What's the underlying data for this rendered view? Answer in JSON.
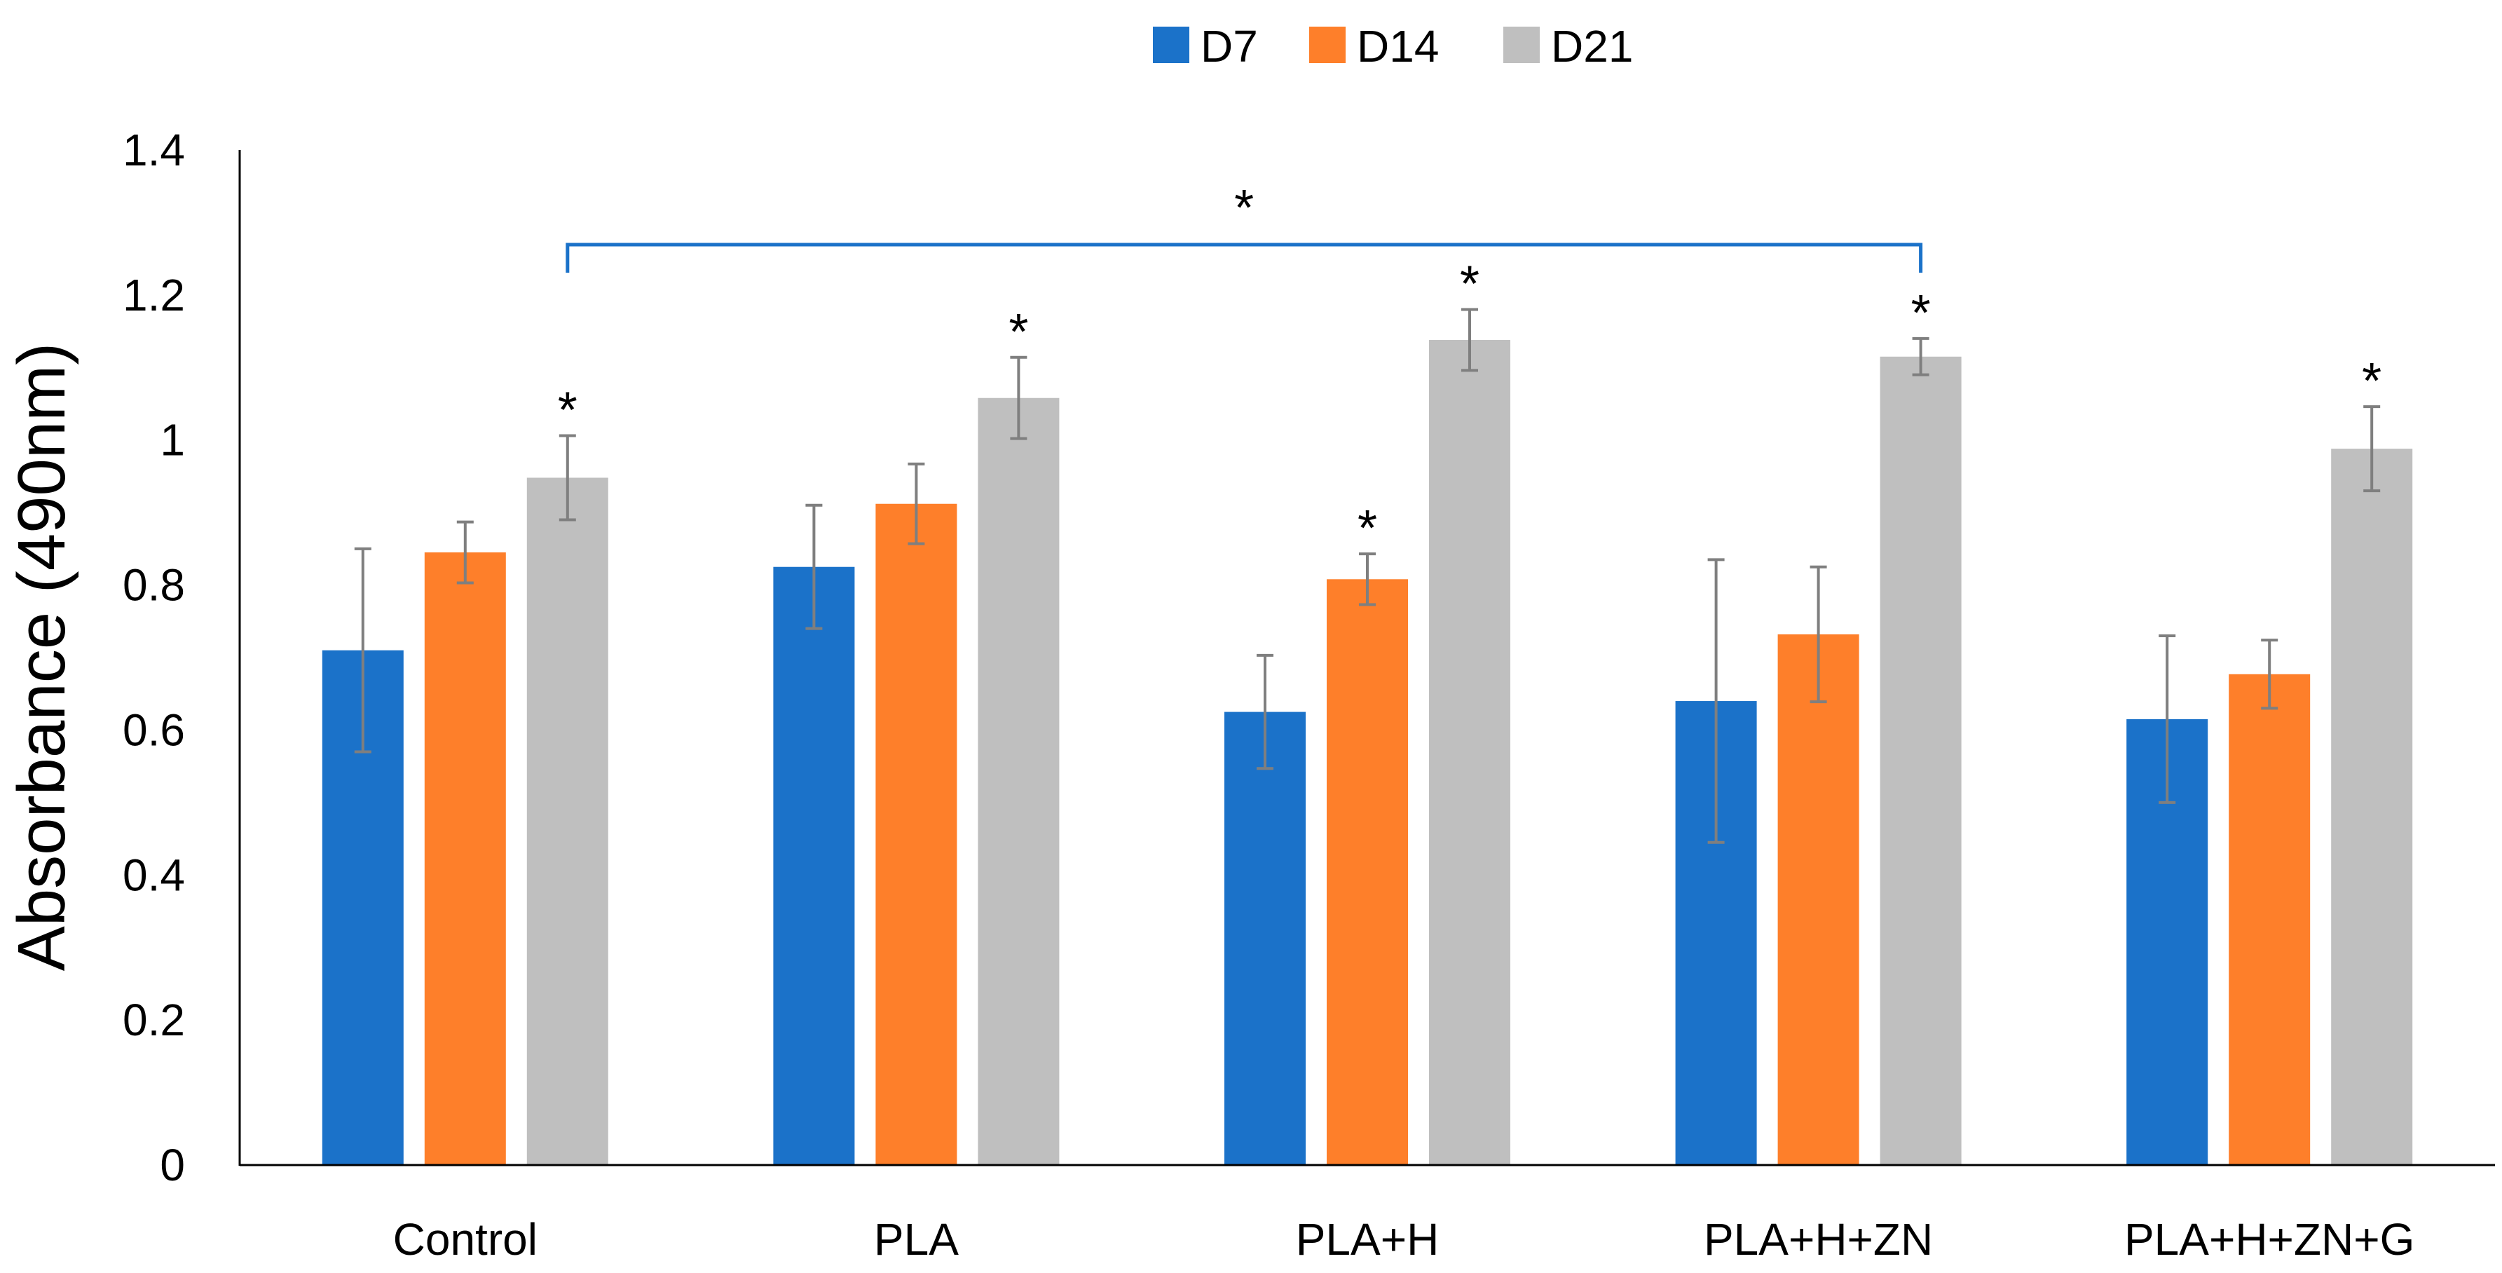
{
  "chart_data": {
    "type": "bar",
    "categories": [
      "Control",
      "PLA",
      "PLA+H",
      "PLA+H+ZN",
      "PLA+H+ZN+G"
    ],
    "series": [
      {
        "name": "D7",
        "color": "#1b72c9",
        "values": [
          0.71,
          0.825,
          0.625,
          0.64,
          0.615
        ],
        "errors": [
          0.14,
          0.085,
          0.078,
          0.195,
          0.115
        ]
      },
      {
        "name": "D14",
        "color": "#fe7f2a",
        "values": [
          0.845,
          0.912,
          0.808,
          0.732,
          0.677
        ],
        "errors": [
          0.042,
          0.055,
          0.035,
          0.093,
          0.047
        ]
      },
      {
        "name": "D21",
        "color": "#bfbfbf",
        "values": [
          0.948,
          1.058,
          1.138,
          1.115,
          0.988
        ],
        "errors": [
          0.058,
          0.056,
          0.042,
          0.025,
          0.058
        ]
      }
    ],
    "significance": [
      {
        "category": 0,
        "series": 2,
        "label": "*"
      },
      {
        "category": 1,
        "series": 2,
        "label": "*"
      },
      {
        "category": 2,
        "series": 1,
        "label": "*"
      },
      {
        "category": 2,
        "series": 2,
        "label": "*"
      },
      {
        "category": 3,
        "series": 2,
        "label": "*"
      },
      {
        "category": 4,
        "series": 2,
        "label": "*"
      }
    ],
    "bracket": {
      "from_category": 0,
      "to_category": 3,
      "label": "*",
      "color": "#1b72c9"
    },
    "ylabel": "Absorbance (490nm)",
    "xlabel": "",
    "title": "",
    "ylim": [
      0,
      1.4
    ],
    "yticks": [
      "0",
      "0.2",
      "0.4",
      "0.6",
      "0.8",
      "1",
      "1.2",
      "1.4"
    ],
    "legend_position": "top-center",
    "grid": false
  }
}
